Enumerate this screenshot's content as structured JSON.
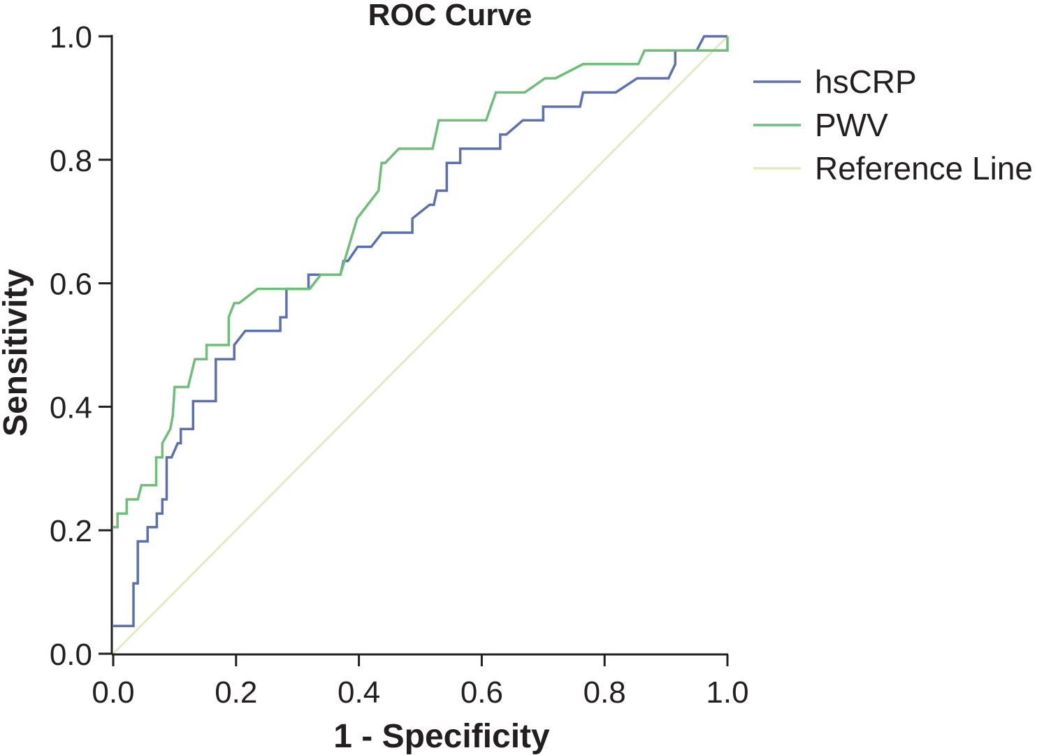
{
  "chart_data": {
    "type": "line",
    "title": "ROC Curve",
    "xlabel": "1 - Specificity",
    "ylabel": "Sensitivity",
    "xlim": [
      0,
      1
    ],
    "ylim": [
      0,
      1
    ],
    "x_ticks": [
      "0.0",
      "0.2",
      "0.4",
      "0.6",
      "0.8",
      "1.0"
    ],
    "y_ticks": [
      "0.0",
      "0.2",
      "0.4",
      "0.6",
      "0.8",
      "1.0"
    ],
    "grid": false,
    "legend_position": "right",
    "series": [
      {
        "name": "hsCRP",
        "color": "#5b6fb5",
        "points": [
          [
            0.0,
            0.045
          ],
          [
            0.033,
            0.045
          ],
          [
            0.033,
            0.114
          ],
          [
            0.04,
            0.114
          ],
          [
            0.04,
            0.182
          ],
          [
            0.056,
            0.182
          ],
          [
            0.056,
            0.205
          ],
          [
            0.071,
            0.205
          ],
          [
            0.071,
            0.227
          ],
          [
            0.08,
            0.227
          ],
          [
            0.08,
            0.25
          ],
          [
            0.087,
            0.25
          ],
          [
            0.087,
            0.318
          ],
          [
            0.095,
            0.318
          ],
          [
            0.105,
            0.341
          ],
          [
            0.11,
            0.341
          ],
          [
            0.11,
            0.364
          ],
          [
            0.13,
            0.364
          ],
          [
            0.13,
            0.409
          ],
          [
            0.167,
            0.409
          ],
          [
            0.167,
            0.477
          ],
          [
            0.197,
            0.477
          ],
          [
            0.197,
            0.5
          ],
          [
            0.215,
            0.523
          ],
          [
            0.272,
            0.523
          ],
          [
            0.272,
            0.545
          ],
          [
            0.282,
            0.545
          ],
          [
            0.282,
            0.591
          ],
          [
            0.318,
            0.591
          ],
          [
            0.318,
            0.614
          ],
          [
            0.37,
            0.614
          ],
          [
            0.375,
            0.636
          ],
          [
            0.382,
            0.636
          ],
          [
            0.398,
            0.659
          ],
          [
            0.42,
            0.659
          ],
          [
            0.438,
            0.682
          ],
          [
            0.487,
            0.682
          ],
          [
            0.487,
            0.705
          ],
          [
            0.515,
            0.727
          ],
          [
            0.522,
            0.727
          ],
          [
            0.527,
            0.75
          ],
          [
            0.543,
            0.75
          ],
          [
            0.543,
            0.795
          ],
          [
            0.565,
            0.795
          ],
          [
            0.565,
            0.818
          ],
          [
            0.63,
            0.818
          ],
          [
            0.63,
            0.841
          ],
          [
            0.64,
            0.841
          ],
          [
            0.667,
            0.864
          ],
          [
            0.7,
            0.864
          ],
          [
            0.7,
            0.886
          ],
          [
            0.76,
            0.886
          ],
          [
            0.765,
            0.909
          ],
          [
            0.818,
            0.909
          ],
          [
            0.853,
            0.932
          ],
          [
            0.904,
            0.932
          ],
          [
            0.915,
            0.955
          ],
          [
            0.915,
            0.977
          ],
          [
            0.95,
            0.977
          ],
          [
            0.962,
            1.0
          ],
          [
            1.0,
            1.0
          ]
        ]
      },
      {
        "name": "PWV",
        "color": "#6dbe78",
        "points": [
          [
            0.0,
            0.205
          ],
          [
            0.007,
            0.205
          ],
          [
            0.007,
            0.227
          ],
          [
            0.022,
            0.227
          ],
          [
            0.022,
            0.25
          ],
          [
            0.04,
            0.25
          ],
          [
            0.046,
            0.273
          ],
          [
            0.07,
            0.273
          ],
          [
            0.07,
            0.318
          ],
          [
            0.08,
            0.318
          ],
          [
            0.08,
            0.341
          ],
          [
            0.093,
            0.364
          ],
          [
            0.097,
            0.386
          ],
          [
            0.1,
            0.432
          ],
          [
            0.122,
            0.432
          ],
          [
            0.133,
            0.477
          ],
          [
            0.152,
            0.477
          ],
          [
            0.152,
            0.5
          ],
          [
            0.188,
            0.5
          ],
          [
            0.188,
            0.545
          ],
          [
            0.197,
            0.568
          ],
          [
            0.205,
            0.568
          ],
          [
            0.235,
            0.591
          ],
          [
            0.32,
            0.591
          ],
          [
            0.338,
            0.614
          ],
          [
            0.37,
            0.614
          ],
          [
            0.397,
            0.705
          ],
          [
            0.432,
            0.75
          ],
          [
            0.437,
            0.795
          ],
          [
            0.443,
            0.795
          ],
          [
            0.465,
            0.818
          ],
          [
            0.52,
            0.818
          ],
          [
            0.53,
            0.864
          ],
          [
            0.607,
            0.864
          ],
          [
            0.623,
            0.909
          ],
          [
            0.67,
            0.909
          ],
          [
            0.703,
            0.932
          ],
          [
            0.72,
            0.932
          ],
          [
            0.765,
            0.955
          ],
          [
            0.855,
            0.955
          ],
          [
            0.865,
            0.977
          ],
          [
            1.0,
            0.977
          ],
          [
            1.0,
            1.0
          ]
        ]
      },
      {
        "name": "Reference Line",
        "color": "#e6e8c4",
        "points": [
          [
            0,
            0
          ],
          [
            1,
            1
          ]
        ]
      }
    ]
  }
}
